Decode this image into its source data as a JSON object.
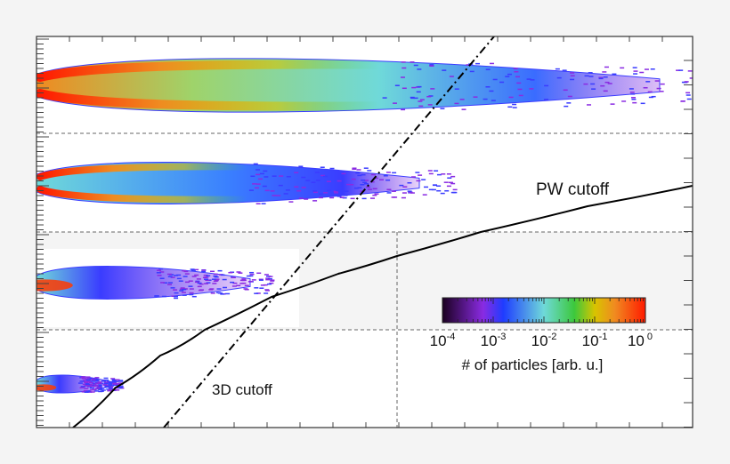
{
  "chart_data": {
    "type": "heatmap",
    "title": "",
    "xlabel": "",
    "ylabel": "",
    "panels": 4,
    "grid": false,
    "colorbar": {
      "label": "# of particles [arb. u.]",
      "scale": "log",
      "range": [
        0.0001,
        1
      ],
      "ticks": [
        {
          "base": "10",
          "exp": "-4"
        },
        {
          "base": "10",
          "exp": "-3"
        },
        {
          "base": "10",
          "exp": "-2"
        },
        {
          "base": "10",
          "exp": "-1"
        },
        {
          "base": "10",
          "exp": "0"
        }
      ],
      "colormap": [
        "#1a0020",
        "#8a2be2",
        "#1f3cff",
        "#6fd9d9",
        "#3cc83c",
        "#d8c400",
        "#f08a20",
        "#ff1a00"
      ]
    },
    "annotations": {
      "pw_cutoff": "PW cutoff",
      "cutoff_3d": "3D cutoff"
    },
    "curves": [
      {
        "label": "PW cutoff",
        "style": "solid"
      },
      {
        "label": "3D cutoff",
        "style": "dash-dot"
      }
    ]
  }
}
